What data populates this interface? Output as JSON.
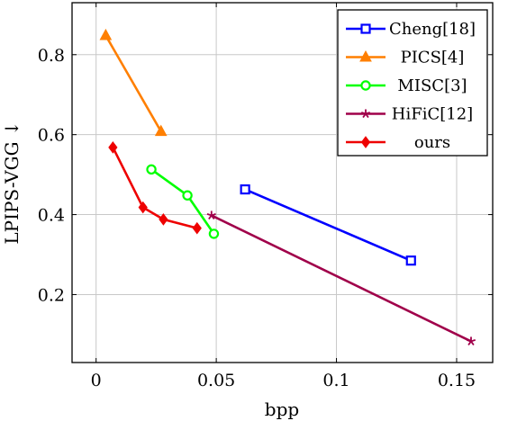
{
  "chart_data": {
    "type": "line",
    "xlabel": "bpp",
    "ylabel": "LPIPS-VGG ↓",
    "xlim": [
      -0.01,
      0.165
    ],
    "ylim": [
      0.03,
      0.93
    ],
    "xticks": [
      0,
      0.05,
      0.1,
      0.15
    ],
    "xtick_labels": [
      "0",
      "0.05",
      "0.1",
      "0.15"
    ],
    "yticks": [
      0.2,
      0.4,
      0.6,
      0.8
    ],
    "ytick_labels": [
      "0.2",
      "0.4",
      "0.6",
      "0.8"
    ],
    "grid": true,
    "legend_position": "top-right",
    "series": [
      {
        "name": "Cheng[18]",
        "color": "#0000ff",
        "marker": "square-open",
        "x": [
          0.062,
          0.131
        ],
        "y": [
          0.463,
          0.285
        ]
      },
      {
        "name": "PICS[4]",
        "color": "#ff7f00",
        "marker": "triangle",
        "x": [
          0.004,
          0.027
        ],
        "y": [
          0.848,
          0.608
        ]
      },
      {
        "name": "MISC[3]",
        "color": "#00ff00",
        "marker": "circle-open",
        "x": [
          0.023,
          0.038,
          0.049
        ],
        "y": [
          0.513,
          0.448,
          0.352
        ]
      },
      {
        "name": "HiFiC[12]",
        "color": "#a0004a",
        "marker": "star",
        "x": [
          0.048,
          0.156
        ],
        "y": [
          0.398,
          0.083
        ]
      },
      {
        "name": "ours",
        "color": "#ee0000",
        "marker": "diamond",
        "x": [
          0.007,
          0.0195,
          0.028,
          0.042
        ],
        "y": [
          0.568,
          0.418,
          0.388,
          0.366
        ]
      }
    ]
  }
}
